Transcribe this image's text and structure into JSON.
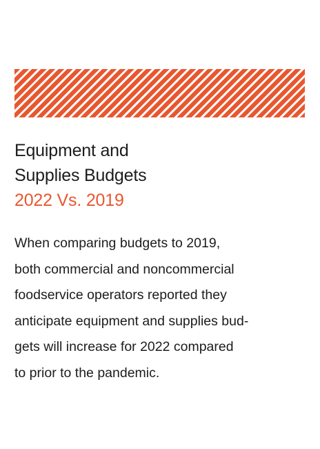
{
  "colors": {
    "accent": "#e8572f",
    "text": "#1c1c1c",
    "background": "#ffffff"
  },
  "heading": {
    "line1": "Equipment and",
    "line2": "Supplies Budgets",
    "line3": "2022 Vs. 2019"
  },
  "body": {
    "lines": [
      "When comparing budgets to 2019,",
      "both commercial and noncommercial",
      "foodservice operators reported they",
      "anticipate equipment and supplies bud-",
      "gets will increase for 2022 compared",
      "to prior to the pandemic."
    ]
  }
}
